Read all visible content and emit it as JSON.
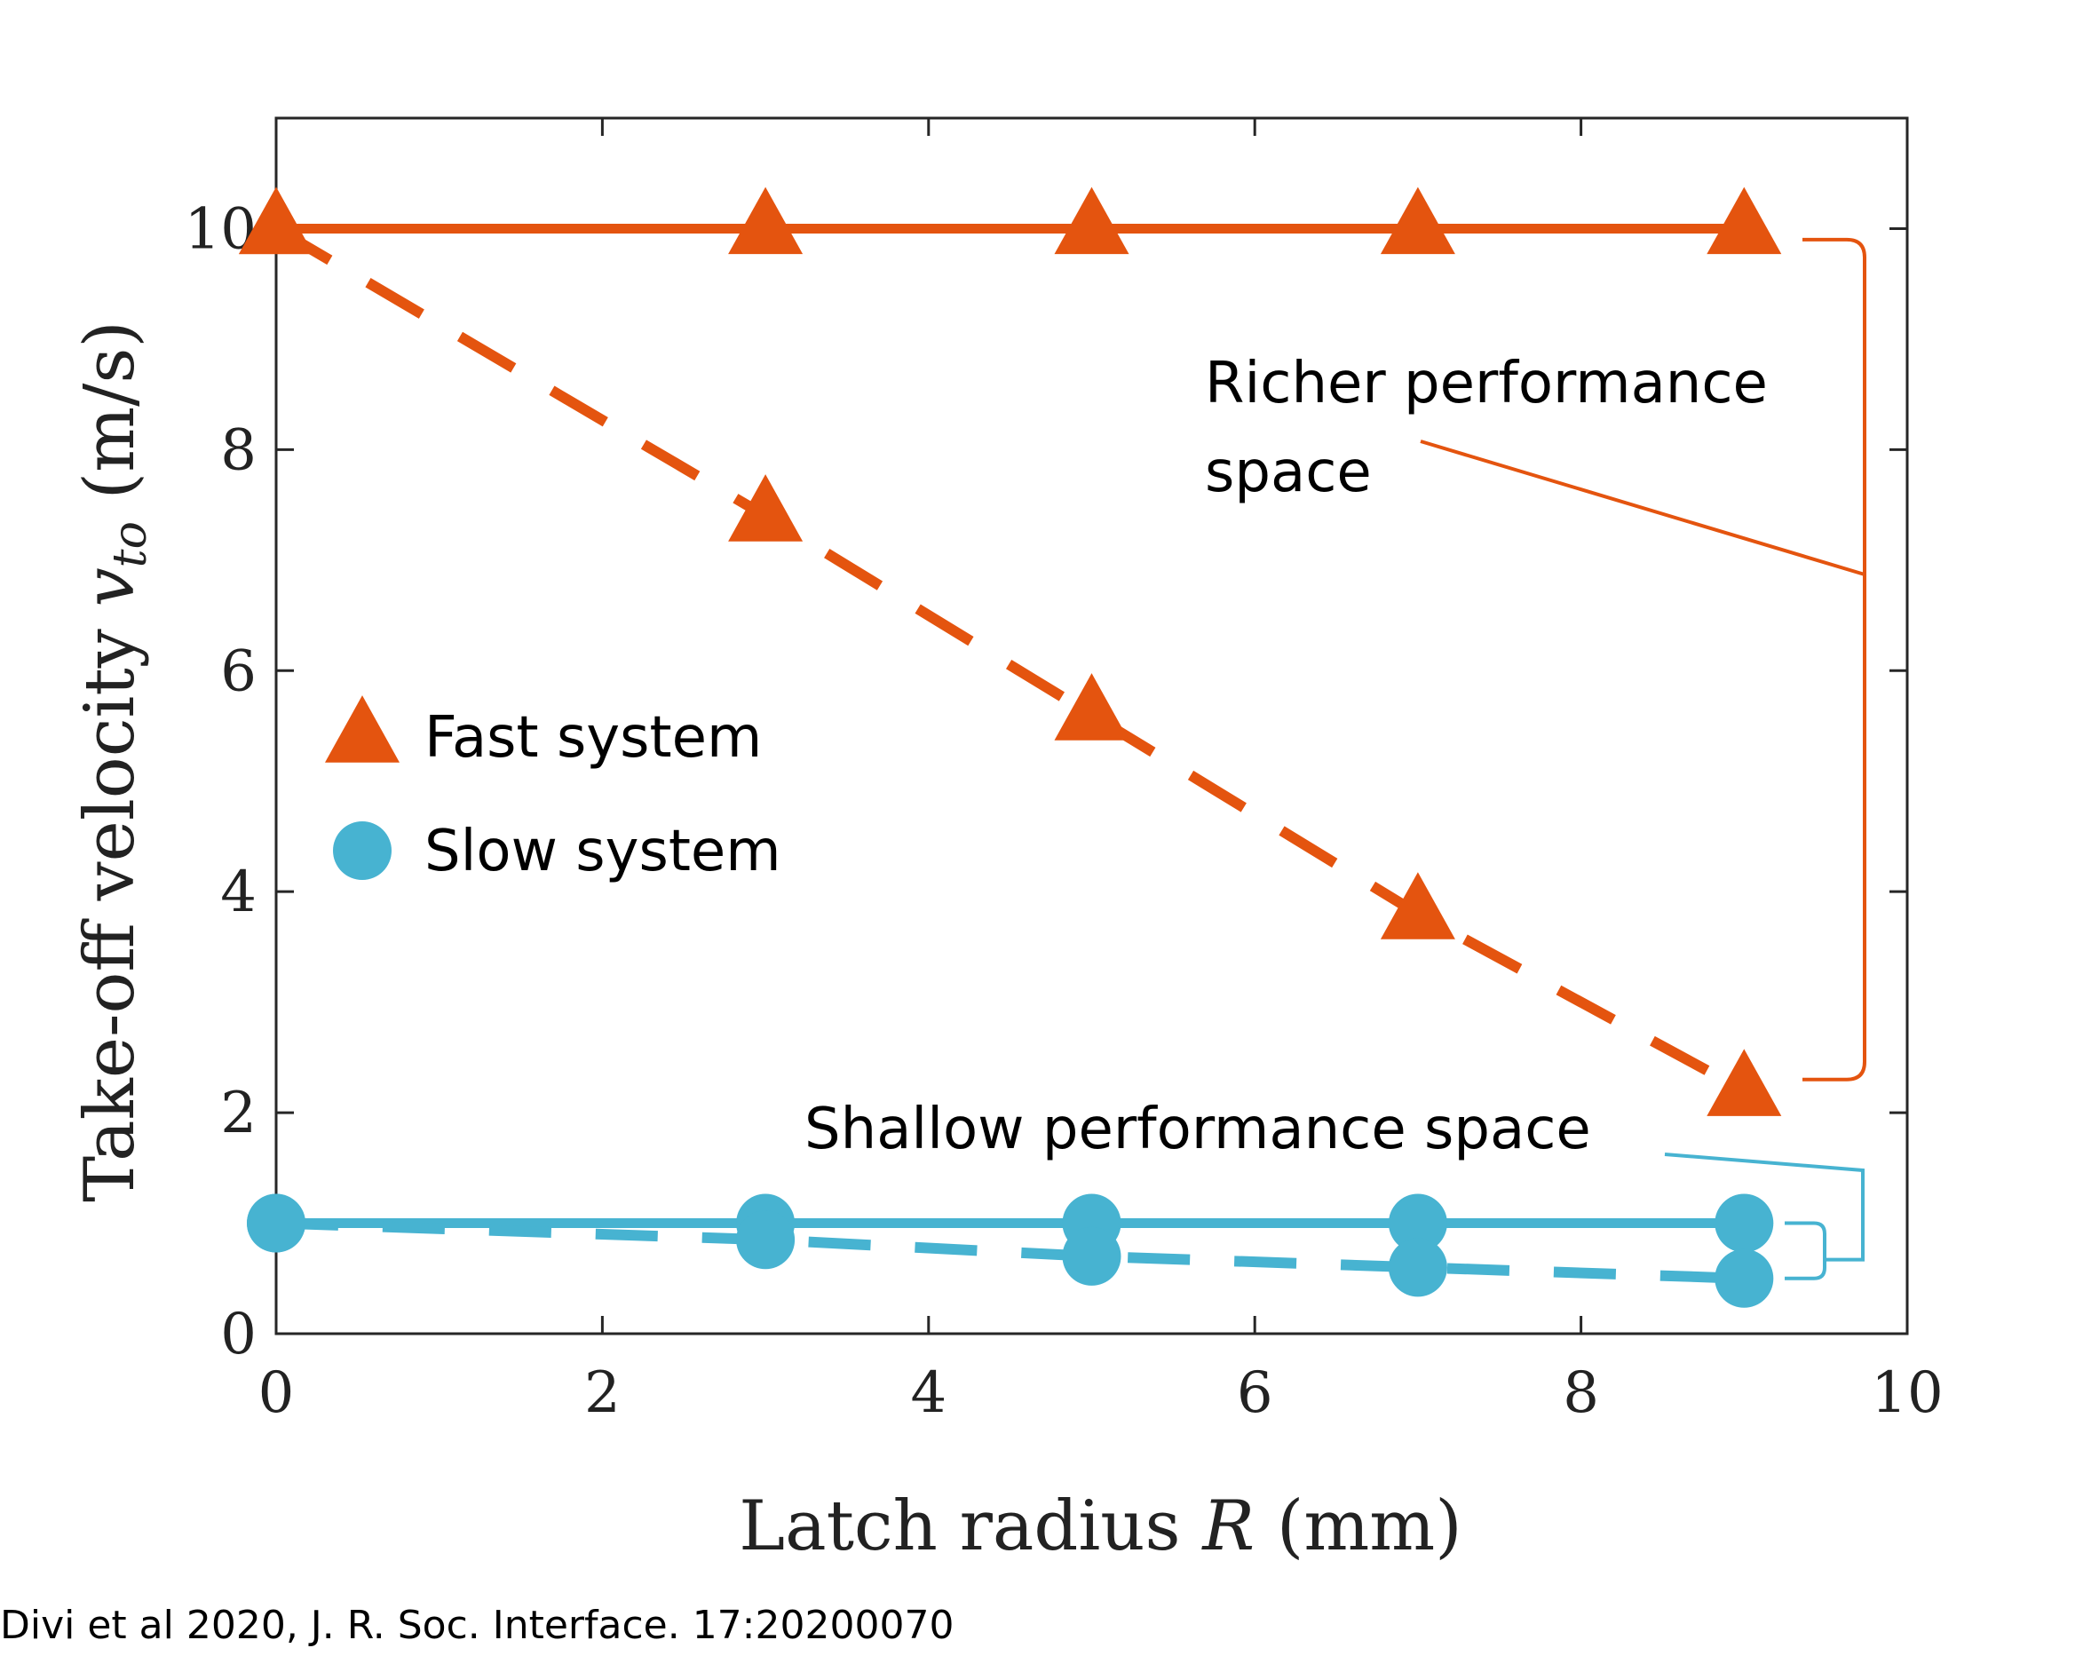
{
  "chart_data": {
    "type": "line",
    "xlabel": "Latch radius",
    "xlabel_var": "R",
    "xlabel_unit": "(mm)",
    "ylabel": "Take-off velocity",
    "ylabel_var": "v",
    "ylabel_sub": "to",
    "ylabel_unit": "(m/s)",
    "xlim": [
      0,
      10
    ],
    "ylim": [
      0,
      11
    ],
    "xticks": [
      0,
      2,
      4,
      6,
      8,
      10
    ],
    "yticks": [
      0,
      2,
      4,
      6,
      8,
      10
    ],
    "grid": false,
    "legend_position": "middle-left",
    "legend": [
      {
        "label": "Fast system",
        "marker": "triangle",
        "color": "#E4540F"
      },
      {
        "label": "Slow system",
        "marker": "circle",
        "color": "#47B3D1"
      }
    ],
    "series": [
      {
        "legend": "Fast system",
        "style": "solid",
        "color": "#E4540F",
        "marker": "triangle",
        "x": [
          0,
          3,
          5,
          7,
          9
        ],
        "y": [
          10,
          10,
          10,
          10,
          10
        ]
      },
      {
        "legend": "Fast system",
        "style": "dashed",
        "color": "#E4540F",
        "marker": "triangle",
        "x": [
          0,
          3,
          5,
          7,
          9
        ],
        "y": [
          10,
          7.4,
          5.6,
          3.8,
          2.2
        ]
      },
      {
        "legend": "Slow system",
        "style": "solid",
        "color": "#47B3D1",
        "marker": "circle",
        "x": [
          0,
          3,
          5,
          7,
          9
        ],
        "y": [
          1.0,
          1.0,
          1.0,
          1.0,
          1.0
        ]
      },
      {
        "legend": "Slow system",
        "style": "dashed",
        "color": "#47B3D1",
        "marker": "circle",
        "x": [
          0,
          3,
          5,
          7,
          9
        ],
        "y": [
          1.0,
          0.85,
          0.7,
          0.6,
          0.5
        ]
      }
    ],
    "annotations": [
      {
        "lines": [
          "Richer performance",
          "space"
        ],
        "color": "#E4540F",
        "spans_y": [
          2.3,
          9.9
        ]
      },
      {
        "lines": [
          "Shallow performance space"
        ],
        "color": "#47B3D1",
        "spans_y": [
          0.5,
          1.0
        ]
      }
    ]
  },
  "citation": "Divi et al 2020, J. R. Soc. Interface. 17:20200070"
}
